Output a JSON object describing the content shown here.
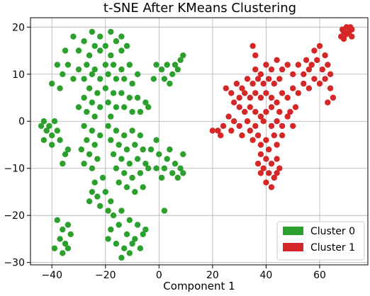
{
  "chart_data": {
    "type": "scatter",
    "title": "t-SNE After KMeans Clustering",
    "xlabel": "Component 1",
    "ylabel": "",
    "xlim": [
      -48,
      78
    ],
    "ylim": [
      -30.5,
      22
    ],
    "xticks": [
      -40,
      -20,
      0,
      20,
      40,
      60
    ],
    "yticks": [
      -30,
      -20,
      -10,
      0,
      10,
      20
    ],
    "grid": true,
    "legend_position": "bottom-right",
    "series": [
      {
        "name": "Cluster 0",
        "color": "#2ca02c",
        "points": [
          [
            -32,
            18
          ],
          [
            -28,
            17
          ],
          [
            -25,
            19
          ],
          [
            -22,
            18
          ],
          [
            -18,
            19
          ],
          [
            -14,
            18
          ],
          [
            -35,
            15
          ],
          [
            -30,
            15
          ],
          [
            -26,
            14
          ],
          [
            -22,
            15
          ],
          [
            -18,
            14
          ],
          [
            -14,
            15
          ],
          [
            -12,
            16
          ],
          [
            -16,
            17
          ],
          [
            -20,
            16
          ],
          [
            -24,
            16
          ],
          [
            -38,
            12
          ],
          [
            -34,
            12
          ],
          [
            -30,
            11
          ],
          [
            -27,
            12
          ],
          [
            -24,
            11
          ],
          [
            -20,
            12
          ],
          [
            -17,
            12
          ],
          [
            -14,
            11
          ],
          [
            -11,
            12
          ],
          [
            -8,
            10
          ],
          [
            -36,
            10
          ],
          [
            -32,
            9
          ],
          [
            -28,
            9
          ],
          [
            -25,
            10
          ],
          [
            -22,
            9
          ],
          [
            -19,
            10
          ],
          [
            -16,
            9
          ],
          [
            -13,
            9
          ],
          [
            -10,
            8
          ],
          [
            -40,
            8
          ],
          [
            -37,
            7
          ],
          [
            -26,
            7
          ],
          [
            -23,
            6
          ],
          [
            -20,
            7
          ],
          [
            -17,
            6
          ],
          [
            -14,
            6
          ],
          [
            -11,
            5
          ],
          [
            -8,
            5
          ],
          [
            -5,
            4
          ],
          [
            -28,
            5
          ],
          [
            -25,
            4
          ],
          [
            -22,
            3
          ],
          [
            -19,
            4
          ],
          [
            -16,
            3
          ],
          [
            -13,
            3
          ],
          [
            -10,
            2
          ],
          [
            -7,
            2
          ],
          [
            -4,
            3
          ],
          [
            -30,
            3
          ],
          [
            -27,
            2
          ],
          [
            -24,
            1
          ],
          [
            -18,
            1
          ],
          [
            -1,
            12
          ],
          [
            1,
            11
          ],
          [
            3,
            12
          ],
          [
            5,
            10
          ],
          [
            7,
            11
          ],
          [
            8,
            13
          ],
          [
            9,
            14
          ],
          [
            2,
            9
          ],
          [
            4,
            8
          ],
          [
            -2,
            9
          ],
          [
            6,
            12
          ],
          [
            -43,
            0
          ],
          [
            -41,
            -1
          ],
          [
            -39,
            0
          ],
          [
            -42,
            -2
          ],
          [
            -40,
            -3
          ],
          [
            -44,
            -1
          ],
          [
            -38,
            -2
          ],
          [
            -43,
            -4
          ],
          [
            -40,
            -5
          ],
          [
            -37,
            -4
          ],
          [
            -28,
            -1
          ],
          [
            -25,
            -2
          ],
          [
            -22,
            -3
          ],
          [
            -27,
            -4
          ],
          [
            -24,
            -5
          ],
          [
            -29,
            -6
          ],
          [
            -26,
            -7
          ],
          [
            -23,
            -8
          ],
          [
            -28,
            -9
          ],
          [
            -25,
            -10
          ],
          [
            -19,
            -1
          ],
          [
            -16,
            -2
          ],
          [
            -13,
            -3
          ],
          [
            -10,
            -2
          ],
          [
            -7,
            -3
          ],
          [
            -18,
            -4
          ],
          [
            -15,
            -5
          ],
          [
            -12,
            -6
          ],
          [
            -9,
            -5
          ],
          [
            -6,
            -6
          ],
          [
            -17,
            -7
          ],
          [
            -14,
            -8
          ],
          [
            -11,
            -9
          ],
          [
            -8,
            -8
          ],
          [
            -5,
            -9
          ],
          [
            -16,
            -10
          ],
          [
            -13,
            -11
          ],
          [
            -10,
            -12
          ],
          [
            -7,
            -11
          ],
          [
            -4,
            -10
          ],
          [
            -15,
            -13
          ],
          [
            -12,
            -14
          ],
          [
            -9,
            -15
          ],
          [
            -6,
            -14
          ],
          [
            -21,
            -12
          ],
          [
            -24,
            -13
          ],
          [
            -20,
            -15
          ],
          [
            -23,
            -16
          ],
          [
            -18,
            -17
          ],
          [
            -25,
            -15
          ],
          [
            -22,
            -18
          ],
          [
            -19,
            -19
          ],
          [
            -26,
            -17
          ],
          [
            -3,
            -6
          ],
          [
            -1,
            -4
          ],
          [
            -35,
            -7
          ],
          [
            -36,
            -9
          ],
          [
            -34,
            -6
          ],
          [
            0,
            -7
          ],
          [
            3,
            -8
          ],
          [
            6,
            -9
          ],
          [
            8,
            -10
          ],
          [
            9,
            -7
          ],
          [
            5,
            -11
          ],
          [
            2,
            -10
          ],
          [
            7,
            -12
          ],
          [
            4,
            -6
          ],
          [
            1,
            -12
          ],
          [
            9,
            -11
          ],
          [
            -1,
            -10
          ],
          [
            2,
            -19
          ],
          [
            -38,
            -21
          ],
          [
            -36,
            -23
          ],
          [
            -34,
            -22
          ],
          [
            -37,
            -25
          ],
          [
            -35,
            -26
          ],
          [
            -33,
            -24
          ],
          [
            -39,
            -27
          ],
          [
            -36,
            -28
          ],
          [
            -34,
            -27
          ],
          [
            -17,
            -20
          ],
          [
            -14,
            -19
          ],
          [
            -11,
            -21
          ],
          [
            -8,
            -22
          ],
          [
            -5,
            -23
          ],
          [
            -18,
            -23
          ],
          [
            -15,
            -22
          ],
          [
            -12,
            -24
          ],
          [
            -9,
            -25
          ],
          [
            -6,
            -24
          ],
          [
            -16,
            -26
          ],
          [
            -13,
            -27
          ],
          [
            -10,
            -26
          ],
          [
            -7,
            -27
          ],
          [
            -19,
            -25
          ],
          [
            -14,
            -29
          ],
          [
            -11,
            -28
          ]
        ]
      },
      {
        "name": "Cluster 1",
        "color": "#d62728",
        "points": [
          [
            68,
            18
          ],
          [
            69,
            19
          ],
          [
            70,
            18.5
          ],
          [
            71,
            19
          ],
          [
            72,
            18
          ],
          [
            70,
            20
          ],
          [
            68.5,
            19.5
          ],
          [
            71.5,
            20
          ],
          [
            69,
            17.5
          ],
          [
            72,
            19.5
          ],
          [
            35,
            16
          ],
          [
            36,
            14
          ],
          [
            58,
            15
          ],
          [
            60,
            16
          ],
          [
            62,
            14
          ],
          [
            55,
            13
          ],
          [
            57,
            12
          ],
          [
            59,
            13
          ],
          [
            61,
            11
          ],
          [
            63,
            12
          ],
          [
            64,
            10
          ],
          [
            52,
            12
          ],
          [
            54,
            10
          ],
          [
            56,
            11
          ],
          [
            50,
            10
          ],
          [
            48,
            12
          ],
          [
            46,
            11
          ],
          [
            44,
            13
          ],
          [
            42,
            11
          ],
          [
            40,
            12
          ],
          [
            38,
            10
          ],
          [
            36,
            11
          ],
          [
            45,
            9
          ],
          [
            43,
            8
          ],
          [
            41,
            9
          ],
          [
            39,
            8
          ],
          [
            37,
            9
          ],
          [
            35,
            8
          ],
          [
            33,
            9
          ],
          [
            31,
            7
          ],
          [
            29,
            8
          ],
          [
            27,
            6
          ],
          [
            25,
            7
          ],
          [
            28,
            4
          ],
          [
            30,
            5
          ],
          [
            32,
            6
          ],
          [
            34,
            5
          ],
          [
            36,
            6
          ],
          [
            38,
            5
          ],
          [
            40,
            6
          ],
          [
            42,
            5
          ],
          [
            44,
            4
          ],
          [
            46,
            6
          ],
          [
            48,
            5
          ],
          [
            50,
            7
          ],
          [
            52,
            6
          ],
          [
            54,
            8
          ],
          [
            56,
            7
          ],
          [
            58,
            9
          ],
          [
            60,
            8
          ],
          [
            62,
            9
          ],
          [
            64,
            7
          ],
          [
            65,
            5
          ],
          [
            63,
            4
          ],
          [
            30,
            3
          ],
          [
            32,
            2
          ],
          [
            34,
            3
          ],
          [
            36,
            2
          ],
          [
            38,
            1
          ],
          [
            40,
            2
          ],
          [
            42,
            3
          ],
          [
            45,
            2
          ],
          [
            48,
            1
          ],
          [
            51,
            3
          ],
          [
            26,
            1
          ],
          [
            28,
            0
          ],
          [
            30,
            -1
          ],
          [
            33,
            0
          ],
          [
            36,
            -1
          ],
          [
            39,
            0
          ],
          [
            42,
            -1
          ],
          [
            44,
            0
          ],
          [
            46,
            -1
          ],
          [
            24,
            -1
          ],
          [
            22,
            -2
          ],
          [
            20,
            -2
          ],
          [
            23,
            -3
          ],
          [
            27,
            -2
          ],
          [
            31,
            -3
          ],
          [
            34,
            -2
          ],
          [
            37,
            -3
          ],
          [
            40,
            -4
          ],
          [
            43,
            -3
          ],
          [
            46,
            -3
          ],
          [
            50,
            -1
          ],
          [
            49,
            2
          ],
          [
            35,
            -4
          ],
          [
            38,
            -5
          ],
          [
            41,
            -6
          ],
          [
            44,
            -5
          ],
          [
            38,
            -7
          ],
          [
            40,
            -8
          ],
          [
            42,
            -9
          ],
          [
            44,
            -8
          ],
          [
            39,
            -10
          ],
          [
            41,
            -11
          ],
          [
            43,
            -12
          ],
          [
            38,
            -11
          ],
          [
            40,
            -13
          ],
          [
            42,
            -14
          ],
          [
            44,
            -11
          ],
          [
            37,
            -9
          ],
          [
            45,
            -10
          ]
        ]
      }
    ]
  }
}
